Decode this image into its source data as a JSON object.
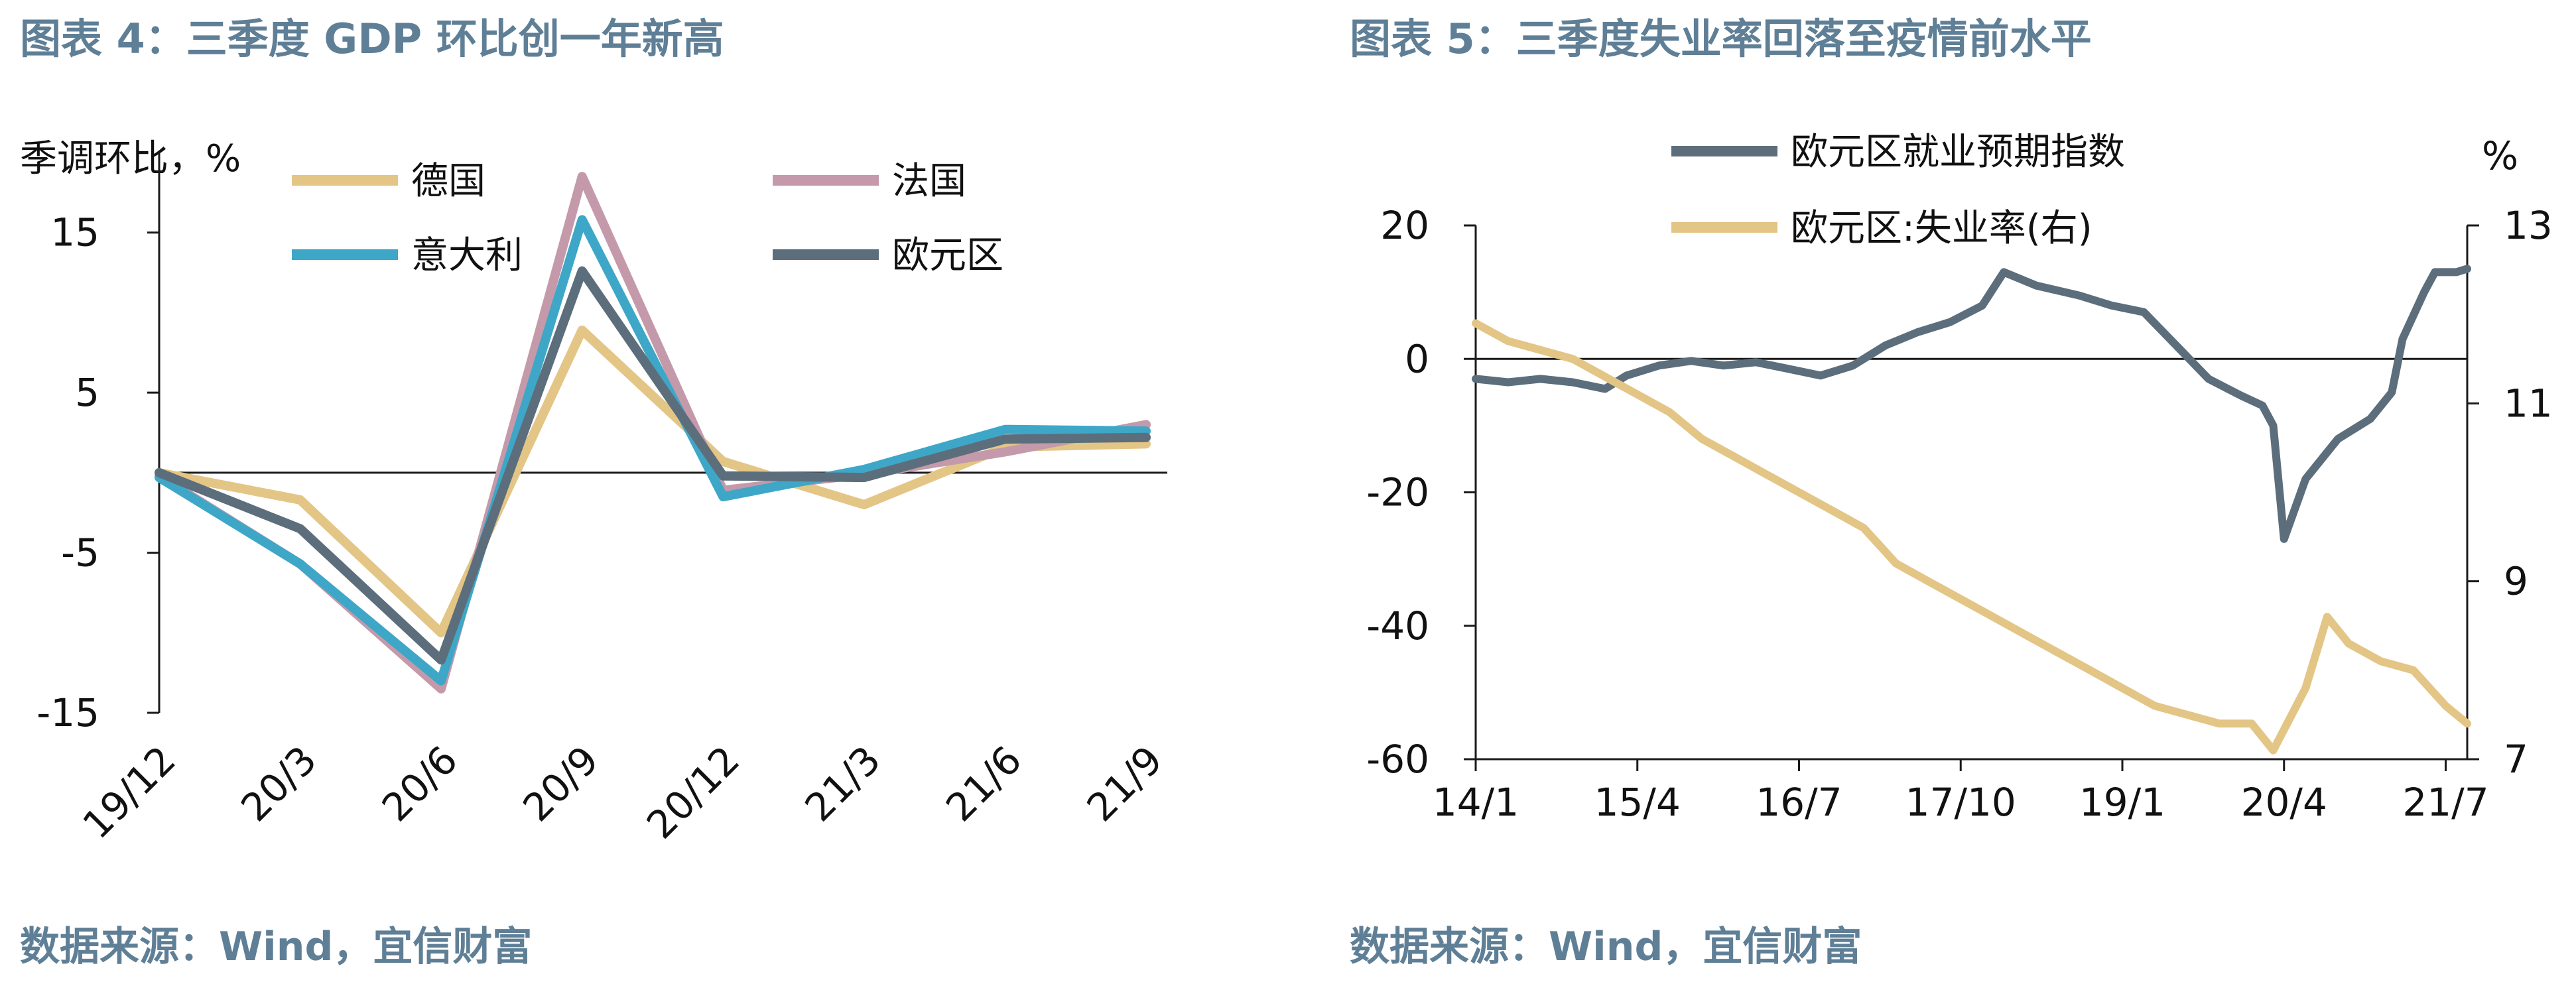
{
  "colors": {
    "heading": "#5f7f96",
    "axis": "#1a1a1a",
    "text": "#111111"
  },
  "chart_data": [
    {
      "type": "line",
      "title": "图表 4：三季度 GDP 环比创一年新高",
      "ylabel": "季调环比，%",
      "source": "数据来源：Wind，宜信财富",
      "ylim": [
        -15,
        20
      ],
      "yticks": [
        15,
        5,
        -5,
        -15
      ],
      "categories": [
        "19/12",
        "20/3",
        "20/6",
        "20/9",
        "20/12",
        "21/3",
        "21/6",
        "21/9"
      ],
      "legend_position": "top",
      "series": [
        {
          "name": "德国",
          "color": "#e3c586",
          "values": [
            0.0,
            -1.7,
            -10.0,
            8.9,
            0.7,
            -2.0,
            1.6,
            1.8
          ]
        },
        {
          "name": "法国",
          "color": "#c49aab",
          "values": [
            -0.2,
            -5.7,
            -13.5,
            18.5,
            -1.1,
            -0.1,
            1.3,
            3.0
          ]
        },
        {
          "name": "意大利",
          "color": "#3ea7c7",
          "values": [
            -0.3,
            -5.7,
            -13.0,
            15.8,
            -1.5,
            0.2,
            2.7,
            2.6
          ]
        },
        {
          "name": "欧元区",
          "color": "#5c6e7c",
          "values": [
            0.0,
            -3.5,
            -11.7,
            12.6,
            -0.2,
            -0.3,
            2.1,
            2.2
          ]
        }
      ]
    },
    {
      "type": "line",
      "title": "图表 5：三季度失业率回落至疫情前水平",
      "source": "数据来源：Wind，宜信财富",
      "y_right_unit": "%",
      "ylim": [
        -60,
        20
      ],
      "y_right_lim": [
        7,
        13
      ],
      "yticks": [
        20,
        0,
        -20,
        -40,
        -60
      ],
      "y_right_ticks": [
        13,
        11,
        9,
        7
      ],
      "x_range": [
        "2014-01",
        "2021-09"
      ],
      "xticks": [
        "14/1",
        "15/4",
        "16/7",
        "17/10",
        "19/1",
        "20/4",
        "21/7"
      ],
      "legend_position": "top",
      "series": [
        {
          "name": "欧元区就业预期指数",
          "axis": "left",
          "color": "#5c6e7c",
          "points": [
            [
              "2014-01",
              -3.0
            ],
            [
              "2014-04",
              -3.5
            ],
            [
              "2014-07",
              -3.0
            ],
            [
              "2014-10",
              -3.5
            ],
            [
              "2015-01",
              -4.5
            ],
            [
              "2015-03",
              -2.5
            ],
            [
              "2015-06",
              -1.0
            ],
            [
              "2015-09",
              -0.3
            ],
            [
              "2015-12",
              -1.0
            ],
            [
              "2016-03",
              -0.5
            ],
            [
              "2016-06",
              -1.5
            ],
            [
              "2016-09",
              -2.5
            ],
            [
              "2016-12",
              -1.0
            ],
            [
              "2017-03",
              2.0
            ],
            [
              "2017-06",
              4.0
            ],
            [
              "2017-09",
              5.5
            ],
            [
              "2017-12",
              8.0
            ],
            [
              "2018-02",
              13.0
            ],
            [
              "2018-05",
              11.0
            ],
            [
              "2018-09",
              9.5
            ],
            [
              "2018-12",
              8.0
            ],
            [
              "2019-03",
              7.0
            ],
            [
              "2019-06",
              2.0
            ],
            [
              "2019-09",
              -3.0
            ],
            [
              "2019-12",
              -5.5
            ],
            [
              "2020-02",
              -7.0
            ],
            [
              "2020-03",
              -10.0
            ],
            [
              "2020-04",
              -27.0
            ],
            [
              "2020-06",
              -18.0
            ],
            [
              "2020-09",
              -12.0
            ],
            [
              "2020-12",
              -9.0
            ],
            [
              "2021-02",
              -5.0
            ],
            [
              "2021-03",
              3.0
            ],
            [
              "2021-05",
              10.0
            ],
            [
              "2021-06",
              13.0
            ],
            [
              "2021-08",
              13.0
            ],
            [
              "2021-09",
              13.5
            ]
          ]
        },
        {
          "name": "欧元区:失业率(右)",
          "axis": "right",
          "color": "#e3c586",
          "points": [
            [
              "2014-01",
              11.9
            ],
            [
              "2014-04",
              11.7
            ],
            [
              "2014-07",
              11.6
            ],
            [
              "2014-10",
              11.5
            ],
            [
              "2015-01",
              11.3
            ],
            [
              "2015-04",
              11.1
            ],
            [
              "2015-07",
              10.9
            ],
            [
              "2015-10",
              10.6
            ],
            [
              "2016-01",
              10.4
            ],
            [
              "2016-04",
              10.2
            ],
            [
              "2016-07",
              10.0
            ],
            [
              "2016-10",
              9.8
            ],
            [
              "2017-01",
              9.6
            ],
            [
              "2017-04",
              9.2
            ],
            [
              "2017-07",
              9.0
            ],
            [
              "2017-10",
              8.8
            ],
            [
              "2018-01",
              8.6
            ],
            [
              "2018-04",
              8.4
            ],
            [
              "2018-07",
              8.2
            ],
            [
              "2018-10",
              8.0
            ],
            [
              "2019-01",
              7.8
            ],
            [
              "2019-04",
              7.6
            ],
            [
              "2019-07",
              7.5
            ],
            [
              "2019-10",
              7.4
            ],
            [
              "2020-01",
              7.4
            ],
            [
              "2020-03",
              7.1
            ],
            [
              "2020-06",
              7.8
            ],
            [
              "2020-08",
              8.6
            ],
            [
              "2020-10",
              8.3
            ],
            [
              "2021-01",
              8.1
            ],
            [
              "2021-04",
              8.0
            ],
            [
              "2021-07",
              7.6
            ],
            [
              "2021-09",
              7.4
            ]
          ]
        }
      ]
    }
  ]
}
